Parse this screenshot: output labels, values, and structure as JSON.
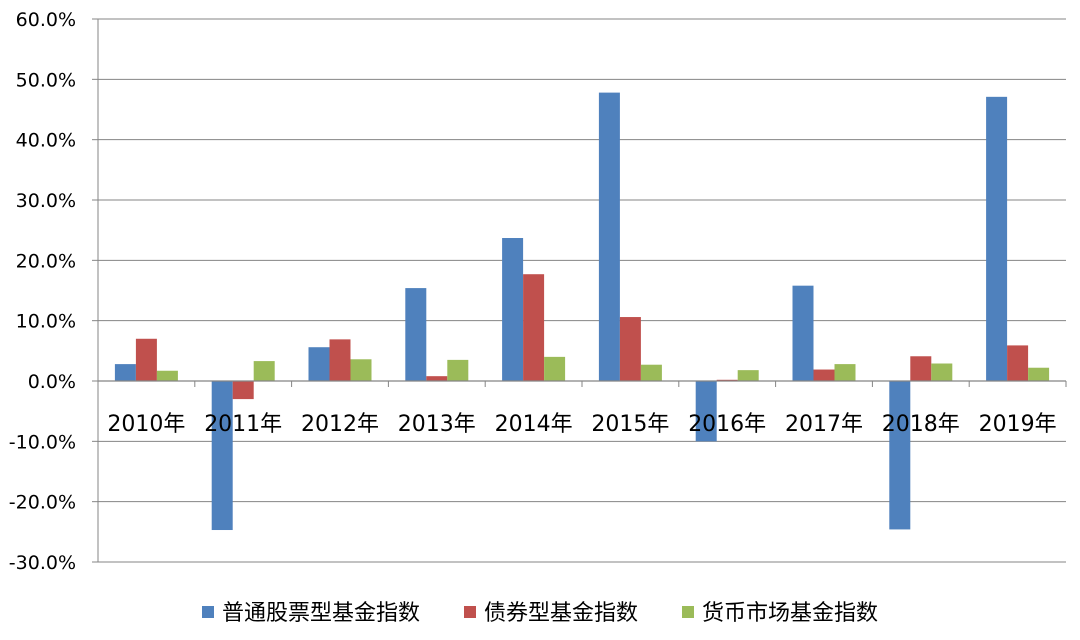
{
  "chart_data": {
    "type": "bar",
    "categories": [
      "2010年",
      "2011年",
      "2012年",
      "2013年",
      "2014年",
      "2015年",
      "2016年",
      "2017年",
      "2018年",
      "2019年"
    ],
    "series": [
      {
        "name": "普通股票型基金指数",
        "color": "#4F81BD",
        "values": [
          2.8,
          -24.7,
          5.6,
          15.4,
          23.7,
          47.8,
          -10.0,
          15.8,
          -24.6,
          47.1
        ]
      },
      {
        "name": "债券型基金指数",
        "color": "#C0504D",
        "values": [
          7.0,
          -3.0,
          6.9,
          0.8,
          17.7,
          10.6,
          0.2,
          1.9,
          4.1,
          5.9
        ]
      },
      {
        "name": "货币市场基金指数",
        "color": "#9BBB59",
        "values": [
          1.7,
          3.3,
          3.6,
          3.5,
          4.0,
          2.7,
          1.8,
          2.8,
          2.9,
          2.2
        ]
      }
    ],
    "ylim": [
      -30,
      60
    ],
    "yticks": [
      -30,
      -20,
      -10,
      0,
      10,
      20,
      30,
      40,
      50,
      60
    ],
    "ytick_labels": [
      "-30.0%",
      "-20.0%",
      "-10.0%",
      "0.0%",
      "10.0%",
      "20.0%",
      "30.0%",
      "40.0%",
      "50.0%",
      "60.0%"
    ],
    "grid": true,
    "legend_position": "bottom",
    "title": "",
    "xlabel": "",
    "ylabel": ""
  }
}
